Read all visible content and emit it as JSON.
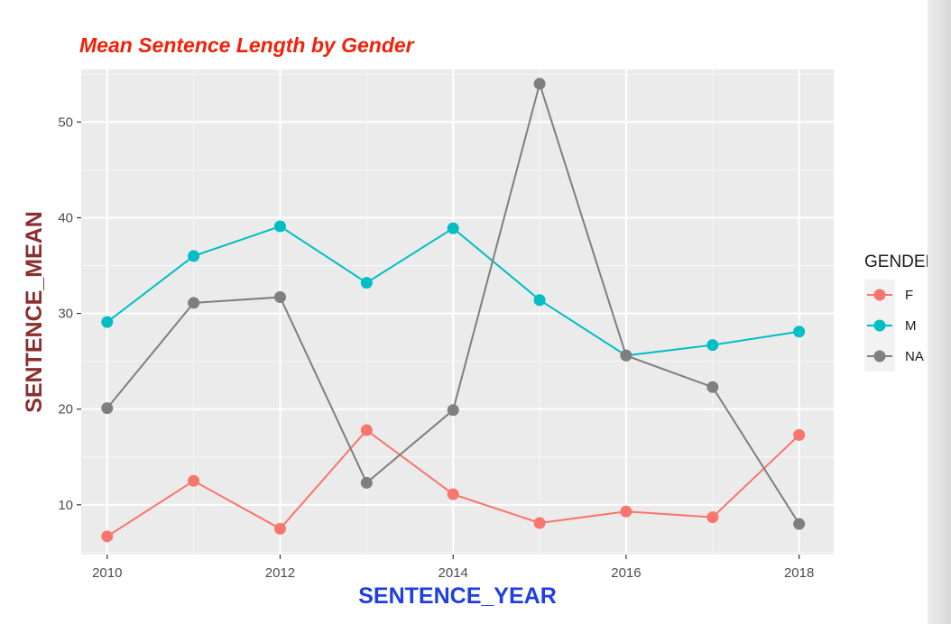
{
  "chart_data": {
    "type": "line",
    "title": "Mean Sentence Length by Gender",
    "xlabel": "SENTENCE_YEAR",
    "ylabel": "SENTENCE_MEAN",
    "x": [
      2010,
      2011,
      2012,
      2013,
      2014,
      2015,
      2016,
      2017,
      2018
    ],
    "xlim": [
      2009.7,
      2018.4
    ],
    "ylim": [
      4.8,
      55.5
    ],
    "x_ticks": [
      2010,
      2012,
      2014,
      2016,
      2018
    ],
    "y_ticks": [
      10,
      20,
      30,
      40,
      50
    ],
    "grid": true,
    "legend": {
      "title": "GENDER",
      "placement": "right"
    },
    "series": [
      {
        "name": "F",
        "color": "#F8766D",
        "values": [
          6.7,
          12.5,
          7.5,
          17.8,
          11.1,
          8.1,
          9.3,
          8.7,
          17.3
        ]
      },
      {
        "name": "M",
        "color": "#00BFC4",
        "values": [
          29.1,
          36.0,
          39.1,
          33.2,
          38.9,
          31.4,
          25.6,
          26.7,
          28.1
        ]
      },
      {
        "name": "NA",
        "color": "#7F7F7F",
        "values": [
          20.1,
          31.1,
          31.7,
          12.3,
          19.9,
          54.0,
          25.6,
          22.3,
          8.0
        ]
      }
    ],
    "colors": {
      "title": "#F0210A",
      "xlabel": "#1F3FE0",
      "ylabel": "#8B2E2E",
      "panel": "#EBEBEB",
      "grid": "#FFFFFF"
    }
  }
}
